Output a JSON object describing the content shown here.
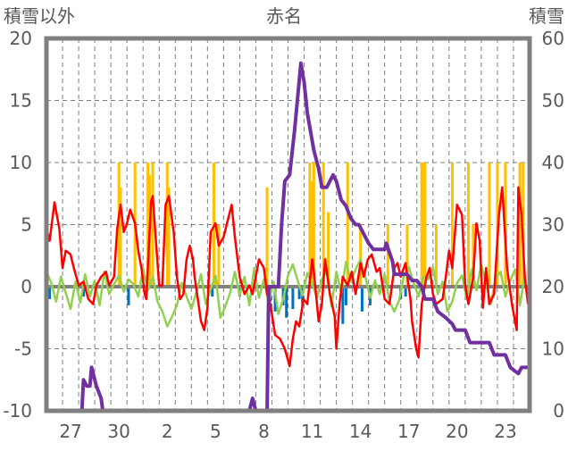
{
  "chart_data": {
    "type": "line",
    "title": "赤名",
    "ylabel_left": "積雪以外",
    "ylabel_right": "積雪",
    "ylim_left": [
      -10,
      20
    ],
    "ylim_right": [
      0,
      60
    ],
    "yticks_left": [
      "20",
      "15",
      "10",
      "5",
      "0",
      "-5",
      "-10"
    ],
    "yticks_right": [
      "60",
      "50",
      "40",
      "30",
      "20",
      "10",
      "0"
    ],
    "x_range_days": [
      0,
      30
    ],
    "x_ticks": [
      {
        "day": 1.5,
        "label": "27"
      },
      {
        "day": 4.5,
        "label": "30"
      },
      {
        "day": 7.5,
        "label": "2"
      },
      {
        "day": 10.5,
        "label": "5"
      },
      {
        "day": 13.5,
        "label": "8"
      },
      {
        "day": 16.5,
        "label": "11"
      },
      {
        "day": 19.5,
        "label": "14"
      },
      {
        "day": 22.5,
        "label": "17"
      },
      {
        "day": 25.5,
        "label": "20"
      },
      {
        "day": 28.5,
        "label": "23"
      }
    ],
    "grid": "dashed, daily vertical, every 5 units horizontal",
    "colors": {
      "red": "#FF0000",
      "green": "#92D050",
      "purple": "#7030A0",
      "bar_pos": "#FFC000",
      "bar_neg": "#0070C0",
      "axis": "#808080"
    },
    "series": [
      {
        "name": "red",
        "axis": "left",
        "points": [
          [
            0,
            4.7
          ],
          [
            0.2,
            3.7
          ],
          [
            0.5,
            6.8
          ],
          [
            0.8,
            4.7
          ],
          [
            1.0,
            1.5
          ],
          [
            1.2,
            2.9
          ],
          [
            1.5,
            2.6
          ],
          [
            1.7,
            1.5
          ],
          [
            2.0,
            0.1
          ],
          [
            2.3,
            0.4
          ],
          [
            2.6,
            -1.0
          ],
          [
            2.9,
            -1.4
          ],
          [
            3.1,
            0.1
          ],
          [
            3.4,
            0.8
          ],
          [
            3.7,
            1.2
          ],
          [
            3.9,
            0.1
          ],
          [
            4.2,
            0.8
          ],
          [
            4.4,
            4.7
          ],
          [
            4.6,
            6.6
          ],
          [
            4.8,
            4.4
          ],
          [
            5.0,
            5.1
          ],
          [
            5.2,
            6.2
          ],
          [
            5.5,
            5.1
          ],
          [
            5.7,
            2.9
          ],
          [
            5.9,
            1.5
          ],
          [
            6.1,
            -0.6
          ],
          [
            6.2,
            -1.0
          ],
          [
            6.5,
            6.9
          ],
          [
            6.6,
            7.3
          ],
          [
            6.8,
            3.7
          ],
          [
            7.0,
            0.1
          ],
          [
            7.2,
            0.1
          ],
          [
            7.4,
            6.6
          ],
          [
            7.6,
            7.3
          ],
          [
            7.9,
            4.4
          ],
          [
            8.1,
            0.8
          ],
          [
            8.3,
            -1.0
          ],
          [
            8.5,
            -0.6
          ],
          [
            8.7,
            2.2
          ],
          [
            8.9,
            3.3
          ],
          [
            9.1,
            2.2
          ],
          [
            9.2,
            0.8
          ],
          [
            9.4,
            -1.0
          ],
          [
            9.6,
            -2.8
          ],
          [
            9.8,
            -3.5
          ],
          [
            10.0,
            -1.7
          ],
          [
            10.2,
            4.4
          ],
          [
            10.5,
            5.1
          ],
          [
            10.7,
            3.3
          ],
          [
            11.0,
            4.0
          ],
          [
            11.5,
            6.6
          ],
          [
            11.7,
            4.0
          ],
          [
            12.0,
            0.8
          ],
          [
            12.3,
            -0.6
          ],
          [
            12.6,
            0.1
          ],
          [
            12.8,
            -0.6
          ],
          [
            13.2,
            2.2
          ],
          [
            13.5,
            1.5
          ],
          [
            13.7,
            -0.6
          ],
          [
            13.9,
            -1.4
          ],
          [
            14.2,
            -3.9
          ],
          [
            14.5,
            -4.2
          ],
          [
            14.8,
            -5.0
          ],
          [
            15.1,
            -6.4
          ],
          [
            15.3,
            -4.2
          ],
          [
            15.5,
            -2.8
          ],
          [
            15.7,
            -3.2
          ],
          [
            15.96,
            -1.0
          ],
          [
            16.2,
            -1.4
          ],
          [
            16.5,
            2.2
          ],
          [
            16.6,
            1.2
          ],
          [
            16.9,
            -2.8
          ],
          [
            17.1,
            -1.4
          ],
          [
            17.3,
            2.2
          ],
          [
            17.6,
            -0.6
          ],
          [
            17.9,
            -2.4
          ],
          [
            18.0,
            -5.0
          ],
          [
            18.2,
            -1.4
          ],
          [
            18.4,
            0.8
          ],
          [
            18.7,
            0.1
          ],
          [
            18.96,
            1.2
          ],
          [
            19.2,
            -0.6
          ],
          [
            19.5,
            1.9
          ],
          [
            19.7,
            0.8
          ],
          [
            19.96,
            2.2
          ],
          [
            20.2,
            2.6
          ],
          [
            20.5,
            1.2
          ],
          [
            20.7,
            1.5
          ],
          [
            21.0,
            -1.0
          ],
          [
            21.3,
            -1.4
          ],
          [
            21.6,
            1.5
          ],
          [
            21.8,
            1.9
          ],
          [
            22.0,
            0.8
          ],
          [
            22.3,
            1.9
          ],
          [
            22.6,
            -1.0
          ],
          [
            22.7,
            -2.8
          ],
          [
            22.96,
            -5.0
          ],
          [
            23.1,
            -5.7
          ],
          [
            23.3,
            -1.4
          ],
          [
            23.6,
            0.8
          ],
          [
            23.8,
            1.5
          ],
          [
            24.0,
            -0.6
          ],
          [
            24.2,
            -1.4
          ],
          [
            24.6,
            -1.0
          ],
          [
            24.8,
            0.8
          ],
          [
            25.0,
            2.9
          ],
          [
            25.2,
            1.5
          ],
          [
            25.5,
            6.6
          ],
          [
            25.8,
            5.8
          ],
          [
            26.0,
            0.1
          ],
          [
            26.2,
            -1.4
          ],
          [
            26.5,
            0.8
          ],
          [
            26.7,
            5.1
          ],
          [
            26.9,
            3.7
          ],
          [
            27.1,
            -1.7
          ],
          [
            27.3,
            1.5
          ],
          [
            27.5,
            -1.4
          ],
          [
            27.8,
            -0.6
          ],
          [
            28.1,
            5.8
          ],
          [
            28.3,
            8.0
          ],
          [
            28.6,
            1.5
          ],
          [
            28.9,
            -1.4
          ],
          [
            29.2,
            -3.5
          ],
          [
            29.3,
            8.0
          ],
          [
            29.5,
            5.8
          ],
          [
            29.7,
            0.8
          ],
          [
            29.9,
            -1.4
          ]
        ]
      },
      {
        "name": "green",
        "axis": "left",
        "start_day": 0,
        "step_days": 0.3,
        "values": [
          1.2,
          0.3,
          -1.2,
          0.8,
          -0.5,
          -1.8,
          0.4,
          -1.3,
          1.0,
          -0.8,
          0.5,
          -1.5,
          1.2,
          -0.6,
          0.2,
          0.9,
          -0.4,
          0.6,
          0.2,
          -0.8,
          1.5,
          -0.3,
          0.8,
          -1.2,
          -2.0,
          -3.2,
          -2.4,
          -1.5,
          0.3,
          -0.8,
          -1.8,
          -0.5,
          1.0,
          -1.4,
          -0.2,
          0.9,
          -2.5,
          -1.6,
          -0.5,
          1.2,
          -0.7,
          0.8,
          -1.5,
          1.5,
          -0.9,
          0.6,
          -1.3,
          0.4,
          -2.2,
          -1.0,
          0.9,
          1.8,
          0.5,
          -0.7,
          1.1,
          0.2,
          -0.9,
          0.6,
          1.3,
          -1.6,
          1.2,
          -0.5,
          2.0,
          0.4,
          1.4,
          2.2,
          0.8,
          -0.9,
          0.5,
          -0.6,
          1.0,
          -1.2,
          -2.0,
          -1.1,
          0.9,
          1.6,
          0.3,
          -0.8,
          0.8,
          0.6,
          1.6,
          -0.6,
          0.4,
          -2.0,
          -1.2,
          0.3,
          0.9,
          -1.0,
          1.4,
          -0.3,
          1.8,
          0.2,
          -1.4,
          0.7,
          1.2,
          -0.8,
          0.5,
          1.4,
          -1.5,
          1.0
        ]
      },
      {
        "name": "purple",
        "axis": "right",
        "points": [
          [
            0,
            0
          ],
          [
            2.2,
            0
          ],
          [
            2.3,
            5
          ],
          [
            2.5,
            4
          ],
          [
            2.7,
            4
          ],
          [
            2.8,
            7
          ],
          [
            2.9,
            6
          ],
          [
            3.1,
            4
          ],
          [
            3.4,
            2
          ],
          [
            3.5,
            0
          ],
          [
            12.6,
            0
          ],
          [
            12.8,
            2
          ],
          [
            13.0,
            0
          ],
          [
            13.7,
            0
          ],
          [
            13.8,
            20
          ],
          [
            14.4,
            20
          ],
          [
            14.6,
            30
          ],
          [
            14.8,
            37
          ],
          [
            15.1,
            38
          ],
          [
            15.4,
            45
          ],
          [
            15.8,
            56
          ],
          [
            16.0,
            53
          ],
          [
            16.2,
            48
          ],
          [
            16.6,
            42
          ],
          [
            16.9,
            39
          ],
          [
            17.1,
            36
          ],
          [
            17.4,
            36
          ],
          [
            17.6,
            37
          ],
          [
            17.8,
            38
          ],
          [
            18.0,
            37
          ],
          [
            18.3,
            34
          ],
          [
            18.6,
            33
          ],
          [
            18.9,
            31
          ],
          [
            19.2,
            30
          ],
          [
            19.4,
            30
          ],
          [
            19.6,
            29
          ],
          [
            20.0,
            27
          ],
          [
            20.3,
            26
          ],
          [
            20.6,
            26
          ],
          [
            21.0,
            26
          ],
          [
            21.1,
            27
          ],
          [
            21.5,
            24
          ],
          [
            21.6,
            22
          ],
          [
            22.4,
            22
          ],
          [
            22.7,
            21
          ],
          [
            23.0,
            21
          ],
          [
            23.3,
            20
          ],
          [
            23.5,
            18
          ],
          [
            24.0,
            18
          ],
          [
            24.3,
            16
          ],
          [
            24.8,
            15
          ],
          [
            25.2,
            14
          ],
          [
            25.4,
            13
          ],
          [
            26.0,
            13
          ],
          [
            26.3,
            11
          ],
          [
            27.5,
            11
          ],
          [
            27.8,
            9
          ],
          [
            28.5,
            9
          ],
          [
            28.8,
            7
          ],
          [
            29.3,
            6
          ],
          [
            29.5,
            7
          ],
          [
            29.9,
            7
          ]
        ]
      }
    ],
    "bars": {
      "name": "bars",
      "axis": "left",
      "points": [
        [
          0.2,
          -1.0
        ],
        [
          2.3,
          -0.8
        ],
        [
          4.5,
          10
        ],
        [
          4.6,
          8
        ],
        [
          5.1,
          -1.5
        ],
        [
          5.5,
          10
        ],
        [
          6.3,
          10
        ],
        [
          6.4,
          9
        ],
        [
          6.6,
          10
        ],
        [
          7.5,
          10
        ],
        [
          7.6,
          8
        ],
        [
          10.3,
          -0.8
        ],
        [
          10.4,
          10
        ],
        [
          10.7,
          5
        ],
        [
          12.0,
          -0.8
        ],
        [
          13.7,
          8
        ],
        [
          13.9,
          -1.2
        ],
        [
          14.2,
          -2.0
        ],
        [
          14.7,
          -1.5
        ],
        [
          14.9,
          -2.5
        ],
        [
          15.3,
          -1.8
        ],
        [
          15.7,
          -1.0
        ],
        [
          15.9,
          -1.5
        ],
        [
          16.35,
          10
        ],
        [
          16.5,
          8.5
        ],
        [
          16.6,
          10
        ],
        [
          17.2,
          10
        ],
        [
          17.5,
          6
        ],
        [
          18.4,
          -3.0
        ],
        [
          18.6,
          -1.5
        ],
        [
          18.7,
          10
        ],
        [
          19.5,
          5
        ],
        [
          19.6,
          -2.0
        ],
        [
          20.1,
          -1.5
        ],
        [
          21.2,
          5
        ],
        [
          22.0,
          -1.0
        ],
        [
          22.3,
          -0.8
        ],
        [
          22.4,
          5
        ],
        [
          23.3,
          10
        ],
        [
          23.4,
          10
        ],
        [
          23.5,
          10
        ],
        [
          24.2,
          5
        ],
        [
          25.2,
          10
        ],
        [
          26.2,
          10
        ],
        [
          26.5,
          5
        ],
        [
          27.5,
          10
        ],
        [
          28.0,
          10
        ],
        [
          28.5,
          10
        ],
        [
          29.4,
          10
        ],
        [
          29.6,
          10
        ]
      ]
    }
  }
}
